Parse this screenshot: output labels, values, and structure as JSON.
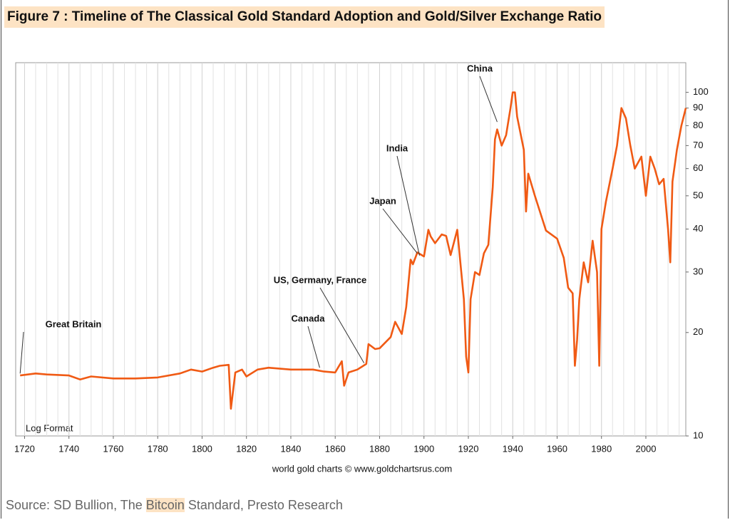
{
  "chart_data": {
    "type": "line",
    "title": "Figure 7 : Timeline of The Classical Gold Standard Adoption and Gold/Silver Exchange Ratio",
    "subtitle": "Log Format",
    "credit": "world gold charts © www.goldchartsrus.com",
    "source": [
      "Source: SD Bullion, The",
      "Bitcoin",
      "Standard, Presto Research"
    ],
    "color": "#f05a14",
    "yscale": "log",
    "grid": true,
    "x_minor_step": 5,
    "xlim": [
      1716,
      2018
    ],
    "xticks": [
      1720,
      1740,
      1760,
      1780,
      1800,
      1820,
      1840,
      1860,
      1880,
      1900,
      1920,
      1940,
      1960,
      1980,
      2000
    ],
    "ylim": [
      10,
      122
    ],
    "yticks": [
      10,
      20,
      30,
      40,
      50,
      60,
      70,
      80,
      90,
      100
    ],
    "x": [
      1718,
      1725,
      1730,
      1740,
      1745,
      1750,
      1760,
      1770,
      1780,
      1790,
      1795,
      1800,
      1805,
      1808,
      1812,
      1813,
      1815,
      1818,
      1820,
      1825,
      1830,
      1840,
      1850,
      1855,
      1860,
      1863,
      1864,
      1866,
      1870,
      1874,
      1875,
      1878,
      1880,
      1885,
      1887,
      1890,
      1892,
      1894,
      1895,
      1897,
      1900,
      1902,
      1903,
      1905,
      1908,
      1910,
      1912,
      1915,
      1918,
      1919,
      1920,
      1921,
      1923,
      1925,
      1927,
      1929,
      1931,
      1932,
      1933,
      1935,
      1937,
      1939,
      1940,
      1941,
      1942,
      1945,
      1946,
      1947,
      1950,
      1955,
      1960,
      1963,
      1965,
      1967,
      1968,
      1969,
      1970,
      1972,
      1974,
      1976,
      1978,
      1979,
      1980,
      1982,
      1985,
      1987,
      1989,
      1991,
      1993,
      1995,
      1998,
      2000,
      2002,
      2004,
      2006,
      2008,
      2010,
      2011,
      2012,
      2014,
      2016,
      2018
    ],
    "values": [
      15,
      15.2,
      15.1,
      15,
      14.6,
      14.9,
      14.7,
      14.7,
      14.8,
      15.2,
      15.6,
      15.4,
      15.8,
      16,
      16.1,
      12,
      15.3,
      15.6,
      14.9,
      15.6,
      15.8,
      15.6,
      15.6,
      15.4,
      15.3,
      16.5,
      14,
      15.3,
      15.6,
      16.2,
      18.5,
      17.9,
      18,
      19.4,
      21.5,
      19.8,
      23.7,
      32.6,
      31.6,
      34.2,
      33.3,
      39.8,
      38.1,
      36.4,
      38.6,
      38.2,
      33.6,
      39.8,
      25,
      17,
      15.3,
      25,
      30,
      29.4,
      34,
      36,
      53,
      73,
      78,
      70,
      75,
      90,
      100,
      100,
      85,
      68,
      45,
      58,
      50,
      39.6,
      37.5,
      33,
      27,
      26,
      16,
      19,
      25,
      32,
      28,
      37,
      30,
      16,
      40,
      48,
      60,
      70,
      90,
      84,
      70,
      60,
      65,
      50,
      65,
      60,
      54,
      56,
      40,
      32,
      55,
      68,
      80,
      90
    ],
    "annotations": [
      {
        "text": "Great Britain",
        "x": 1718,
        "y": 15.2
      },
      {
        "text": "Canada",
        "x": 1853,
        "y": 15.8
      },
      {
        "text": "US, Germany, France",
        "x": 1873,
        "y": 16.3
      },
      {
        "text": "Japan",
        "x": 1897,
        "y": 34
      },
      {
        "text": "India",
        "x": 1898,
        "y": 33.5
      },
      {
        "text": "China",
        "x": 1933,
        "y": 82
      }
    ]
  }
}
